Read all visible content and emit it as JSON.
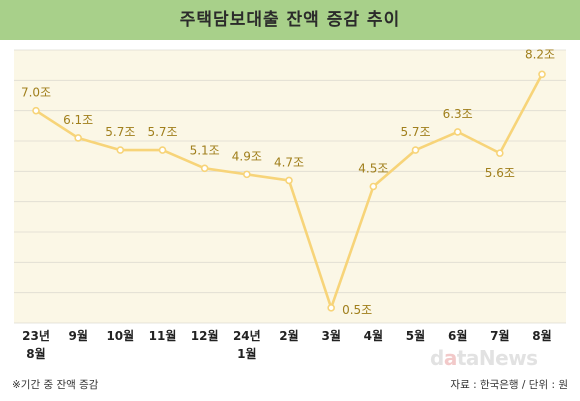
{
  "title": "주택담보대출 잔액 증감 추이",
  "chart_data": {
    "type": "line",
    "categories": [
      "23년\n8월",
      "9월",
      "10월",
      "11월",
      "12월",
      "24년\n1월",
      "2월",
      "3월",
      "4월",
      "5월",
      "6월",
      "7월",
      "8월"
    ],
    "values": [
      7.0,
      6.1,
      5.7,
      5.7,
      5.1,
      4.9,
      4.7,
      0.5,
      4.5,
      5.7,
      6.3,
      5.6,
      8.2
    ],
    "value_labels": [
      "7.0조",
      "6.1조",
      "5.7조",
      "5.7조",
      "5.1조",
      "4.9조",
      "4.7조",
      "0.5조",
      "4.5조",
      "5.7조",
      "6.3조",
      "5.6조",
      "8.2조"
    ],
    "ylim": [
      0,
      9
    ],
    "grid": true,
    "line_color": "#f7d479",
    "label_color": "#a07f1c"
  },
  "footnote": "※기간 중 잔액 증감",
  "source": "자료 : 한국은행 / 단위 : 원",
  "watermark": {
    "d": "d",
    "a": "a",
    "rest": "taNews"
  },
  "colors": {
    "header_bg": "#a8d08a",
    "plot_bg": "#fbf7e6"
  }
}
